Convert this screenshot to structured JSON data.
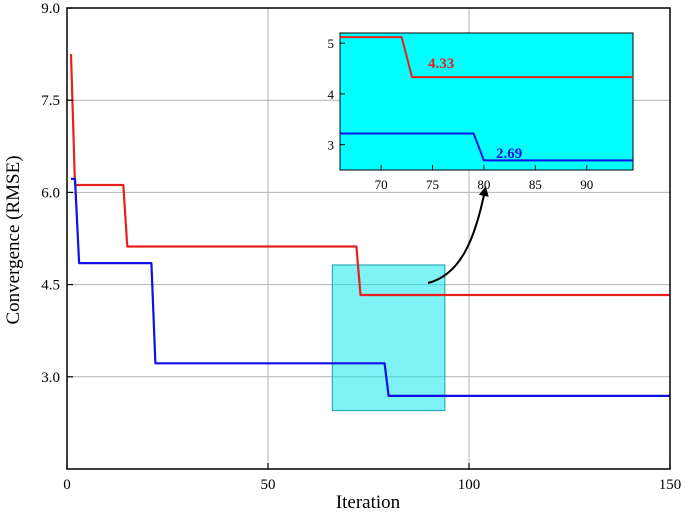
{
  "chart_data": {
    "type": "line",
    "title": "",
    "xlabel": "Iteration",
    "ylabel": "Convergence (RMSE)",
    "xlim": [
      0,
      150
    ],
    "ylim": [
      1.5,
      9.0
    ],
    "x_ticks": [
      "0",
      "50",
      "100",
      "150"
    ],
    "y_ticks": [
      "3.0",
      "4.5",
      "6.0",
      "7.5",
      "9.0"
    ],
    "grid": true,
    "legend": "none",
    "series": [
      {
        "color": "#e8201c",
        "points": [
          [
            1,
            8.25
          ],
          [
            2,
            6.12
          ],
          [
            14,
            6.12
          ],
          [
            15,
            5.12
          ],
          [
            72,
            5.12
          ],
          [
            73,
            4.33
          ],
          [
            150,
            4.33
          ]
        ]
      },
      {
        "color": "#1010e8",
        "points": [
          [
            1,
            6.22
          ],
          [
            2,
            6.22
          ],
          [
            3,
            4.85
          ],
          [
            21,
            4.85
          ],
          [
            22,
            3.22
          ],
          [
            79,
            3.22
          ],
          [
            80,
            2.69
          ],
          [
            150,
            2.69
          ]
        ]
      }
    ],
    "highlight_region": {
      "x": [
        66,
        94
      ],
      "y": [
        2.45,
        4.82
      ],
      "color": "#00e5ee"
    },
    "inset": {
      "xlim": [
        66,
        94.5
      ],
      "ylim": [
        2.5,
        5.2
      ],
      "x_ticks": [
        "70",
        "75",
        "80",
        "85",
        "90"
      ],
      "y_ticks": [
        "3",
        "4",
        "5"
      ],
      "background": "#00ffff",
      "annotations": [
        {
          "text": "4.33",
          "color": "#e8201c"
        },
        {
          "text": "2.69",
          "color": "#1010e8"
        }
      ]
    }
  }
}
